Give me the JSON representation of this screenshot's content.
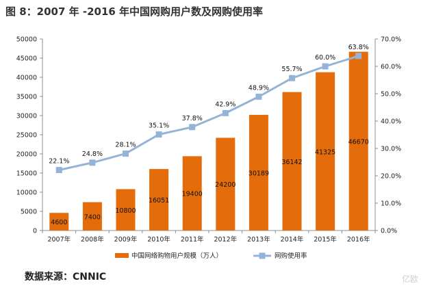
{
  "title": "图 8：2007 年 -2016 年中国网购用户数及网购使用率",
  "source": "数据来源：CNNIC",
  "watermark": "亿欧",
  "colors": {
    "bar": "#E46C0A",
    "line": "#95B3D7",
    "marker": "#95B3D7"
  },
  "chart_data": {
    "type": "bar",
    "categories": [
      "2007年",
      "2008年",
      "2009年",
      "2010年",
      "2011年",
      "2012年",
      "2013年",
      "2014年",
      "2015年",
      "2016年"
    ],
    "series": [
      {
        "name": "中国网络购物用户规模（万人）",
        "type": "bar",
        "axis": "left",
        "values": [
          4600,
          7400,
          10800,
          16051,
          19400,
          24200,
          30189,
          36142,
          41325,
          46670
        ],
        "labels": [
          "4600",
          "7400",
          "10800",
          "16051",
          "19400",
          "24200",
          "30189",
          "36142",
          "41325",
          "46670"
        ]
      },
      {
        "name": "网购使用率",
        "type": "line",
        "axis": "right",
        "values": [
          22.1,
          24.8,
          28.1,
          35.1,
          37.8,
          42.9,
          48.9,
          55.7,
          60.0,
          63.8
        ],
        "labels": [
          "22.1%",
          "24.8%",
          "28.1%",
          "35.1%",
          "37.8%",
          "42.9%",
          "48.9%",
          "55.7%",
          "60.0%",
          "63.8%"
        ]
      }
    ],
    "ylim": [
      0,
      50000
    ],
    "y2lim": [
      0,
      70
    ],
    "yticks": [
      "0",
      "5000",
      "10000",
      "15000",
      "20000",
      "25000",
      "30000",
      "35000",
      "40000",
      "45000",
      "50000"
    ],
    "y2ticks": [
      "0.0%",
      "10.0%",
      "20.0%",
      "30.0%",
      "40.0%",
      "50.0%",
      "60.0%",
      "70.0%"
    ],
    "legend_position": "bottom",
    "grid": false
  }
}
